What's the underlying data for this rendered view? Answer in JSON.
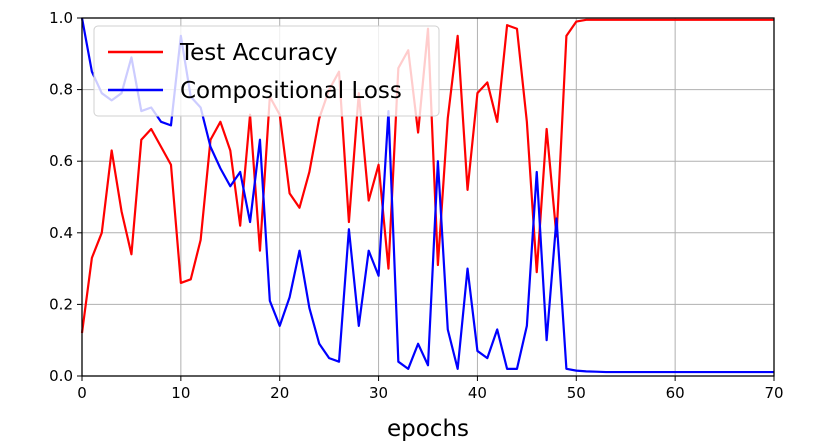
{
  "chart_data": {
    "type": "line",
    "title": "",
    "xlabel": "epochs",
    "ylabel": "",
    "xlim": [
      0,
      70
    ],
    "ylim": [
      0.0,
      1.0
    ],
    "xticks": [
      "0",
      "10",
      "20",
      "30",
      "40",
      "50",
      "60",
      "70"
    ],
    "yticks": [
      "0.0",
      "0.2",
      "0.4",
      "0.6",
      "0.8",
      "1.0"
    ],
    "grid": true,
    "legend_position": "top-left",
    "series": [
      {
        "name": "Test Accuracy",
        "color": "#ff0000",
        "x": [
          0,
          1,
          2,
          3,
          4,
          5,
          6,
          7,
          8,
          9,
          10,
          11,
          12,
          13,
          14,
          15,
          16,
          17,
          18,
          19,
          20,
          21,
          22,
          23,
          24,
          25,
          26,
          27,
          28,
          29,
          30,
          31,
          32,
          33,
          34,
          35,
          36,
          37,
          38,
          39,
          40,
          41,
          42,
          43,
          44,
          45,
          46,
          47,
          48,
          49,
          50,
          51,
          52,
          53,
          54,
          55,
          56,
          57,
          58,
          59,
          60,
          61,
          62,
          63,
          64,
          65,
          66,
          67,
          68,
          69,
          70
        ],
        "values": [
          0.12,
          0.33,
          0.4,
          0.63,
          0.46,
          0.34,
          0.66,
          0.69,
          0.64,
          0.59,
          0.26,
          0.27,
          0.38,
          0.66,
          0.71,
          0.63,
          0.42,
          0.73,
          0.35,
          0.78,
          0.73,
          0.51,
          0.47,
          0.57,
          0.72,
          0.8,
          0.85,
          0.43,
          0.79,
          0.49,
          0.59,
          0.3,
          0.86,
          0.91,
          0.68,
          0.97,
          0.31,
          0.72,
          0.95,
          0.52,
          0.79,
          0.82,
          0.71,
          0.98,
          0.97,
          0.71,
          0.29,
          0.69,
          0.39,
          0.95,
          0.99,
          0.995,
          0.995,
          0.995,
          0.995,
          0.995,
          0.995,
          0.995,
          0.995,
          0.995,
          0.995,
          0.995,
          0.995,
          0.995,
          0.995,
          0.995,
          0.995,
          0.995,
          0.995,
          0.995,
          0.995
        ]
      },
      {
        "name": "Compositional Loss",
        "color": "#0000ff",
        "x": [
          0,
          1,
          2,
          3,
          4,
          5,
          6,
          7,
          8,
          9,
          10,
          11,
          12,
          13,
          14,
          15,
          16,
          17,
          18,
          19,
          20,
          21,
          22,
          23,
          24,
          25,
          26,
          27,
          28,
          29,
          30,
          31,
          32,
          33,
          34,
          35,
          36,
          37,
          38,
          39,
          40,
          41,
          42,
          43,
          44,
          45,
          46,
          47,
          48,
          49,
          50,
          51,
          52,
          53,
          54,
          55,
          56,
          57,
          58,
          59,
          60,
          61,
          62,
          63,
          64,
          65,
          66,
          67,
          68,
          69,
          70
        ],
        "values": [
          1.0,
          0.85,
          0.79,
          0.77,
          0.79,
          0.89,
          0.74,
          0.75,
          0.71,
          0.7,
          0.95,
          0.78,
          0.75,
          0.64,
          0.58,
          0.53,
          0.57,
          0.43,
          0.66,
          0.21,
          0.14,
          0.22,
          0.35,
          0.19,
          0.09,
          0.05,
          0.04,
          0.41,
          0.14,
          0.35,
          0.28,
          0.74,
          0.04,
          0.02,
          0.09,
          0.03,
          0.6,
          0.13,
          0.02,
          0.3,
          0.07,
          0.05,
          0.13,
          0.02,
          0.02,
          0.14,
          0.57,
          0.1,
          0.44,
          0.02,
          0.015,
          0.013,
          0.012,
          0.011,
          0.011,
          0.011,
          0.011,
          0.011,
          0.011,
          0.011,
          0.011,
          0.011,
          0.011,
          0.011,
          0.011,
          0.011,
          0.011,
          0.011,
          0.011,
          0.011,
          0.011
        ]
      }
    ]
  }
}
